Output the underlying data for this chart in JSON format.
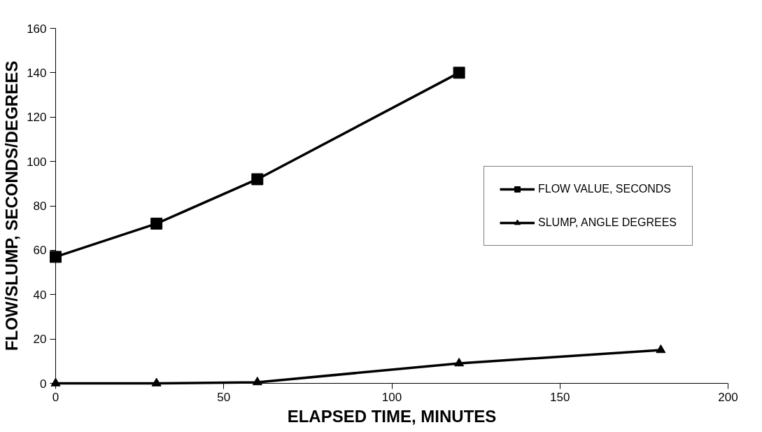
{
  "chart_data": {
    "type": "line",
    "xlabel": "ELAPSED TIME, MINUTES",
    "ylabel": "FLOW/SLUMP, SECONDS/DEGREES",
    "x": [
      0,
      30,
      60,
      120,
      180
    ],
    "series": [
      {
        "name": "FLOW VALUE, SECONDS",
        "color": "#000000",
        "marker": "square",
        "values": [
          57,
          72,
          92,
          140,
          null
        ]
      },
      {
        "name": "SLUMP, ANGLE DEGREES",
        "color": "#000000",
        "marker": "triangle",
        "values": [
          0,
          0,
          0.5,
          9,
          15
        ]
      }
    ],
    "xlim": [
      0,
      200
    ],
    "xticks": [
      0,
      50,
      100,
      150,
      200
    ],
    "ylim": [
      0,
      160
    ],
    "yticks": [
      0,
      20,
      40,
      60,
      80,
      100,
      120,
      140,
      160
    ],
    "grid": false,
    "legend": "right",
    "line_style": "solid"
  }
}
